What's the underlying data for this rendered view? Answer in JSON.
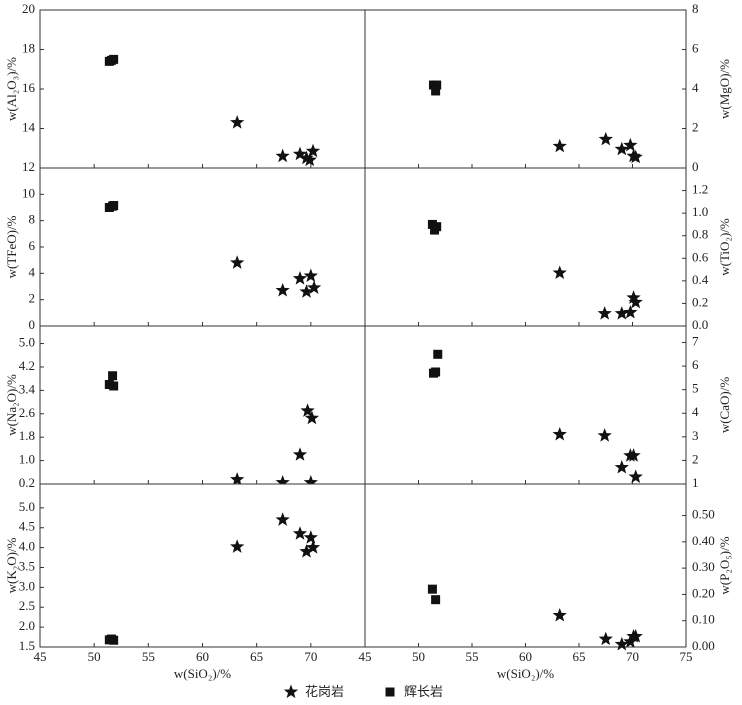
{
  "legend": [
    {
      "name": "花岗岩",
      "marker": "star",
      "color": "#111111"
    },
    {
      "name": "辉长岩",
      "marker": "square",
      "color": "#111111"
    }
  ],
  "chart_data": [
    {
      "type": "scatter",
      "ylabel": "w(Al₂O₃)/%",
      "xlim": [
        45,
        75
      ],
      "xticks": [
        45,
        50,
        55,
        60,
        65,
        70
      ],
      "ylim": [
        12,
        20
      ],
      "yticks": [
        12,
        14,
        16,
        18,
        20
      ],
      "series": [
        {
          "x": [
            63.2,
            67.4,
            69.0,
            69.6,
            69.9,
            70.2
          ],
          "values": [
            14.3,
            12.6,
            12.7,
            12.5,
            12.4,
            12.85
          ]
        },
        {
          "x": [
            51.4,
            51.6,
            51.8
          ],
          "values": [
            17.4,
            17.45,
            17.5
          ]
        }
      ]
    },
    {
      "type": "scatter",
      "ylabel": "w(MgO)/%",
      "xlim": [
        45,
        75
      ],
      "xticks": [
        45,
        50,
        55,
        60,
        65,
        70,
        75
      ],
      "ylim": [
        0,
        8
      ],
      "yticks": [
        0,
        2,
        4,
        6,
        8
      ],
      "series": [
        {
          "x": [
            63.2,
            67.5,
            69.0,
            69.8,
            70.1,
            70.3
          ],
          "values": [
            1.1,
            1.45,
            0.95,
            1.15,
            0.6,
            0.55
          ]
        },
        {
          "x": [
            51.4,
            51.7,
            51.6
          ],
          "values": [
            4.2,
            4.2,
            3.9
          ]
        }
      ]
    },
    {
      "type": "scatter",
      "ylabel": "w(TFeO)/%",
      "xlim": [
        45,
        75
      ],
      "xticks": [
        45,
        50,
        55,
        60,
        65,
        70
      ],
      "ylim": [
        0,
        12
      ],
      "yticks": [
        0,
        2,
        4,
        6,
        8,
        10
      ],
      "series": [
        {
          "x": [
            63.2,
            67.4,
            69.0,
            69.6,
            70.0,
            70.3
          ],
          "values": [
            4.8,
            2.7,
            3.6,
            2.6,
            3.8,
            2.9
          ]
        },
        {
          "x": [
            51.4,
            51.7,
            51.8
          ],
          "values": [
            9.0,
            9.1,
            9.15
          ]
        }
      ]
    },
    {
      "type": "scatter",
      "ylabel": "w(TiO₂)/%",
      "xlim": [
        45,
        75
      ],
      "xticks": [
        45,
        50,
        55,
        60,
        65,
        70,
        75
      ],
      "ylim": [
        0,
        1.4
      ],
      "yticks": [
        {
          "value": 0,
          "label": "0.0"
        },
        0.2,
        0.4,
        0.6,
        0.8,
        {
          "value": 1,
          "label": "1.0"
        },
        1.2
      ],
      "series": [
        {
          "x": [
            63.2,
            67.4,
            69.0,
            69.8,
            70.1,
            70.3
          ],
          "values": [
            0.47,
            0.11,
            0.11,
            0.12,
            0.25,
            0.21
          ]
        },
        {
          "x": [
            51.3,
            51.5,
            51.7
          ],
          "values": [
            0.9,
            0.85,
            0.88
          ]
        }
      ]
    },
    {
      "type": "scatter",
      "ylabel": "w(Na₂O)/%",
      "xlim": [
        45,
        75
      ],
      "xticks": [
        45,
        50,
        55,
        60,
        65,
        70
      ],
      "ylim": [
        0.2,
        5.6
      ],
      "yticks": [
        0.2,
        {
          "value": 1,
          "label": "1.0"
        },
        1.8,
        2.6,
        3.4,
        4.2,
        {
          "value": 5,
          "label": "5.0"
        }
      ],
      "series": [
        {
          "x": [
            63.2,
            67.4,
            69.0,
            69.7,
            70.1,
            70.0
          ],
          "values": [
            0.35,
            0.25,
            1.2,
            2.7,
            2.45,
            0.25
          ]
        },
        {
          "x": [
            51.7,
            51.4,
            51.8
          ],
          "values": [
            3.9,
            3.6,
            3.55
          ]
        }
      ]
    },
    {
      "type": "scatter",
      "ylabel": "w(CaO)/%",
      "xlim": [
        45,
        75
      ],
      "xticks": [
        45,
        50,
        55,
        60,
        65,
        70,
        75
      ],
      "ylim": [
        1,
        7.7
      ],
      "yticks": [
        1,
        2,
        3,
        4,
        5,
        6,
        7
      ],
      "series": [
        {
          "x": [
            63.2,
            67.4,
            69.0,
            69.8,
            70.1,
            70.3
          ],
          "values": [
            3.1,
            3.05,
            1.7,
            2.2,
            2.2,
            1.3
          ]
        },
        {
          "x": [
            51.4,
            51.6,
            51.8
          ],
          "values": [
            5.7,
            5.75,
            6.5
          ]
        }
      ]
    },
    {
      "type": "scatter",
      "ylabel": "w(K₂O)/%",
      "xlabel": "w(SiO₂)/%",
      "xlim": [
        45,
        75
      ],
      "xticks": [
        45,
        50,
        55,
        60,
        65,
        70
      ],
      "ylim": [
        1.5,
        5.6
      ],
      "yticks": [
        1.5,
        {
          "value": 2,
          "label": "2.0"
        },
        2.5,
        {
          "value": 3,
          "label": "3.0"
        },
        3.5,
        {
          "value": 4,
          "label": "4.0"
        },
        4.5,
        {
          "value": 5,
          "label": "5.0"
        }
      ],
      "series": [
        {
          "x": [
            63.2,
            67.4,
            69.0,
            69.6,
            70.0,
            70.2
          ],
          "values": [
            4.02,
            4.7,
            4.35,
            3.9,
            4.25,
            4.0
          ]
        },
        {
          "x": [
            51.4,
            51.6,
            51.8
          ],
          "values": [
            1.68,
            1.7,
            1.67
          ]
        }
      ]
    },
    {
      "type": "scatter",
      "ylabel": "w(P₂O₅)/%",
      "xlabel": "w(SiO₂)/%",
      "xlim": [
        45,
        75
      ],
      "xticks": [
        45,
        50,
        55,
        60,
        65,
        70,
        75
      ],
      "ylim": [
        0,
        0.62
      ],
      "yticks": [
        {
          "value": 0,
          "label": "0.00"
        },
        {
          "value": 0.1,
          "label": "0.10"
        },
        {
          "value": 0.2,
          "label": "0.20"
        },
        {
          "value": 0.3,
          "label": "0.30"
        },
        {
          "value": 0.4,
          "label": "0.40"
        },
        {
          "value": 0.5,
          "label": "0.50"
        }
      ],
      "series": [
        {
          "x": [
            63.2,
            67.5,
            69.0,
            69.8,
            70.1,
            70.3
          ],
          "values": [
            0.12,
            0.03,
            0.01,
            0.02,
            0.04,
            0.04
          ]
        },
        {
          "x": [
            51.3,
            51.6
          ],
          "values": [
            0.22,
            0.18
          ]
        }
      ]
    }
  ]
}
